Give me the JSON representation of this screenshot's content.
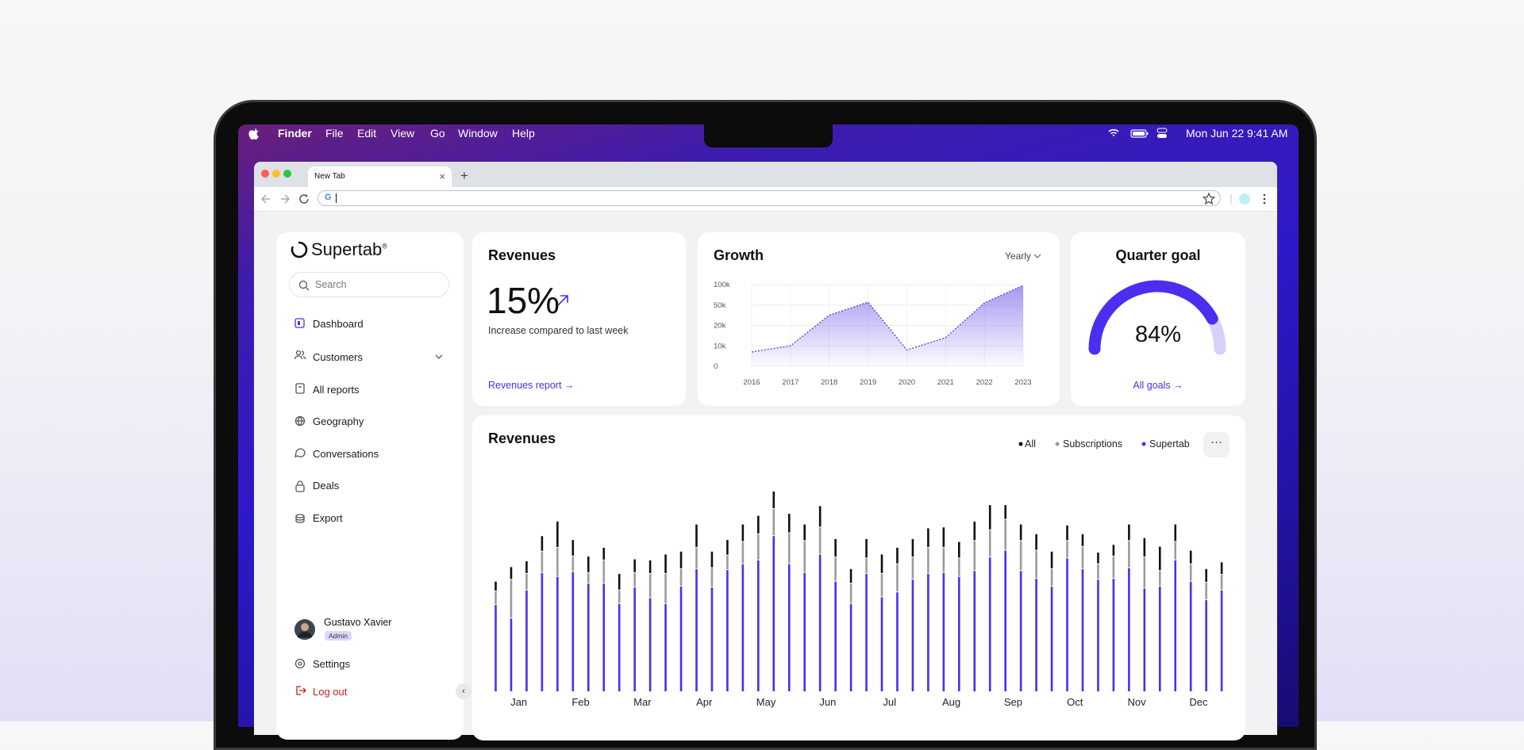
{
  "menu_bar": {
    "app": "Finder",
    "menus": [
      "File",
      "Edit",
      "View",
      "Go",
      "Window",
      "Help"
    ],
    "date": "Mon Jun 22",
    "time": "9:41 AM"
  },
  "browser": {
    "tab": "New Tab"
  },
  "sidebar": {
    "brand": "Supertab",
    "brand_mark": "®",
    "search_placeholder": "Search",
    "nav": [
      "Dashboard",
      "Customers",
      "All reports",
      "Geography",
      "Conversations",
      "Deals",
      "Export"
    ],
    "user": {
      "name": "Gustavo Xavier",
      "role": "Admin"
    },
    "settings": "Settings",
    "logout": "Log out"
  },
  "revenue_card": {
    "title": "Revenues",
    "value": "15%",
    "caption": "Increase compared to last week",
    "link": "Revenues report →"
  },
  "goal_card": {
    "title": "Quarter goal",
    "value": 84,
    "value_label": "84%",
    "link": "All goals →"
  },
  "chart_data": [
    {
      "type": "line",
      "title": "Growth",
      "period": "Yearly",
      "categories": [
        "2016",
        "2017",
        "2018",
        "2019",
        "2020",
        "2021",
        "2022",
        "2023"
      ],
      "values": [
        7000,
        10000,
        35000,
        57000,
        8000,
        14000,
        55000,
        98000
      ],
      "ylim": [
        0,
        100000
      ],
      "yticks": [
        0,
        {
          "value": 10000,
          "label": "10k"
        },
        {
          "value": 20000,
          "label": "20k"
        },
        {
          "value": 50000,
          "label": "50k"
        },
        {
          "value": 100000,
          "label": "100k"
        }
      ],
      "color": "#5b45e8",
      "grid": true
    },
    {
      "type": "bar",
      "title": "Revenues",
      "stacked": true,
      "categories": [
        "Jan",
        null,
        null,
        null,
        "Feb",
        null,
        null,
        null,
        "Mar",
        null,
        null,
        null,
        "Apr",
        null,
        null,
        null,
        "May",
        null,
        null,
        null,
        "Jun",
        null,
        null,
        null,
        "Jul",
        null,
        null,
        null,
        "Aug",
        null,
        null,
        null,
        "Sep",
        null,
        null,
        null,
        "Oct",
        null,
        null,
        null,
        "Nov",
        null,
        null,
        null,
        "Dec",
        null,
        null,
        null
      ],
      "series": [
        {
          "name": "All",
          "color": "#111111",
          "values": [
            10,
            13,
            13,
            16,
            27,
            17,
            17,
            13,
            17,
            14,
            14,
            20,
            18,
            24,
            17,
            16,
            18,
            19,
            18,
            20,
            17,
            22,
            19,
            15,
            20,
            20,
            17,
            19,
            20,
            21,
            17,
            20,
            26,
            15,
            17,
            17,
            18,
            16,
            13,
            12,
            12,
            17,
            20,
            25,
            18,
            14,
            14,
            13
          ]
        },
        {
          "name": "Subscriptions",
          "color": "#9b9b9b",
          "values": [
            14,
            40,
            17,
            22,
            30,
            16,
            11,
            24,
            14,
            15,
            25,
            31,
            18,
            22,
            20,
            15,
            23,
            27,
            28,
            32,
            33,
            28,
            25,
            21,
            16,
            24,
            29,
            23,
            27,
            26,
            19,
            31,
            28,
            32,
            31,
            29,
            18,
            18,
            23,
            16,
            23,
            28,
            32,
            16,
            19,
            18,
            18,
            16
          ]
        },
        {
          "name": "Supertab",
          "color": "#4a2ff0",
          "values": [
            90,
            76,
            105,
            123,
            119,
            124,
            112,
            112,
            91,
            108,
            97,
            91,
            109,
            127,
            108,
            126,
            132,
            136,
            161,
            132,
            123,
            142,
            114,
            91,
            122,
            98,
            103,
            116,
            122,
            123,
            119,
            125,
            139,
            146,
            125,
            117,
            109,
            138,
            127,
            116,
            117,
            128,
            107,
            109,
            136,
            114,
            95,
            105
          ]
        }
      ]
    }
  ]
}
